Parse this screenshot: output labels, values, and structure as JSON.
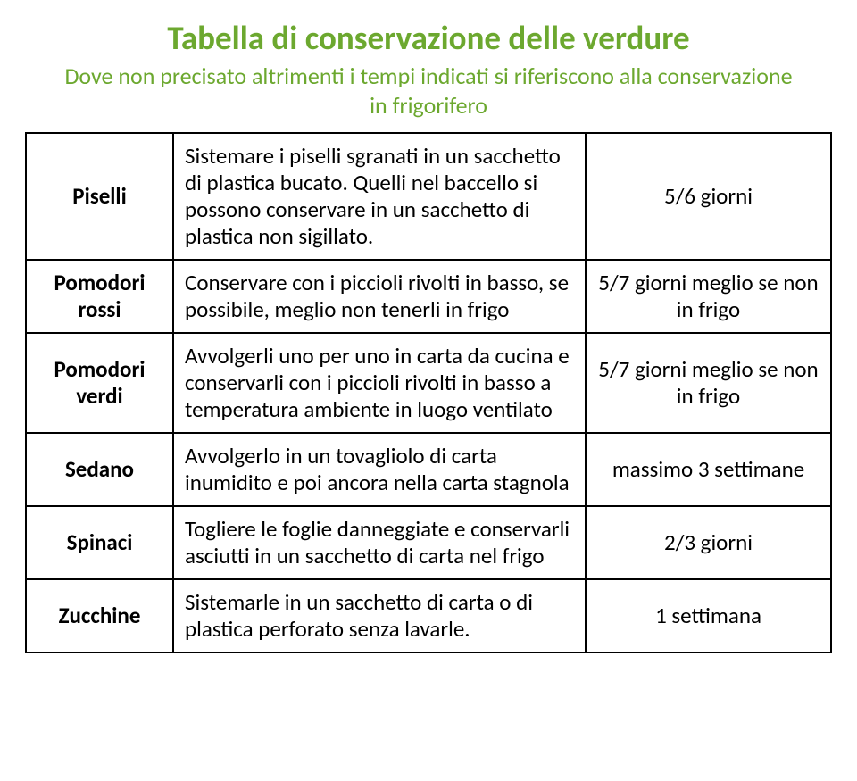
{
  "title": "Tabella di conservazione delle verdure",
  "subtitle": "Dove non precisato altrimenti i tempi indicati si riferiscono alla conservazione in frigorifero",
  "colors": {
    "accent": "#6ca82f",
    "text": "#000000",
    "border": "#000000",
    "background": "#ffffff"
  },
  "rows": [
    {
      "name": "Piselli",
      "method": "Sistemare i piselli sgranati in un sacchetto di plastica bucato. Quelli nel baccello si possono conservare in un sacchetto di plastica non sigillato.",
      "duration": "5/6 giorni"
    },
    {
      "name": "Pomodori rossi",
      "method": "Conservare con i piccioli rivolti in basso, se possibile, meglio non tenerli in frigo",
      "duration": "5/7 giorni meglio se non in frigo"
    },
    {
      "name": "Pomodori verdi",
      "method": "Avvolgerli uno per uno in carta da cucina e conservarli con i piccioli rivolti in basso a temperatura ambiente in luogo ventilato",
      "duration": "5/7 giorni meglio se non in frigo"
    },
    {
      "name": "Sedano",
      "method": "Avvolgerlo in un tovagliolo di carta inumidito e poi ancora nella carta stagnola",
      "duration": "massimo 3  settimane"
    },
    {
      "name": "Spinaci",
      "method": "Togliere le foglie danneggiate e conservarli asciutti in un sacchetto di carta nel frigo",
      "duration": "2/3 giorni"
    },
    {
      "name": "Zucchine",
      "method": "Sistemarle in un sacchetto di carta o di plastica perforato senza lavarle.",
      "duration": "1 settimana"
    }
  ]
}
